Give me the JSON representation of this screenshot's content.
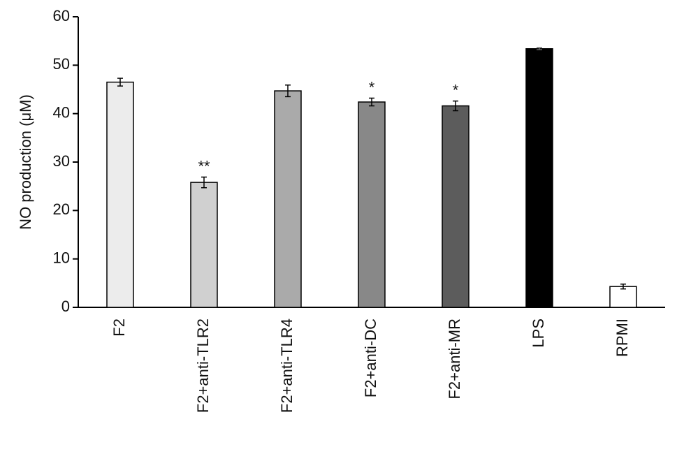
{
  "chart_data": {
    "type": "bar",
    "y_label": "NO production (μM)",
    "categories": [
      "F2",
      "F2+anti-TLR2",
      "F2+anti-TLR4",
      "F2+anti-DC",
      "F2+anti-MR",
      "LPS",
      "RPMI"
    ],
    "values": [
      46.5,
      25.8,
      44.7,
      42.4,
      41.6,
      53.4,
      4.3
    ],
    "errors": [
      0.8,
      1.1,
      1.2,
      0.8,
      1.0,
      0.2,
      0.5
    ],
    "colors": [
      "#ececec",
      "#d0d0d0",
      "#aaaaaa",
      "#888888",
      "#5c5c5c",
      "#000000",
      "#ffffff"
    ],
    "annotations": [
      {
        "category": "F2+anti-TLR2",
        "text": "**"
      },
      {
        "category": "F2+anti-DC",
        "text": "*"
      },
      {
        "category": "F2+anti-MR",
        "text": "*"
      }
    ],
    "ylim": [
      0,
      60
    ],
    "yticks": [
      0,
      10,
      20,
      30,
      40,
      50,
      60
    ],
    "grid": false
  }
}
